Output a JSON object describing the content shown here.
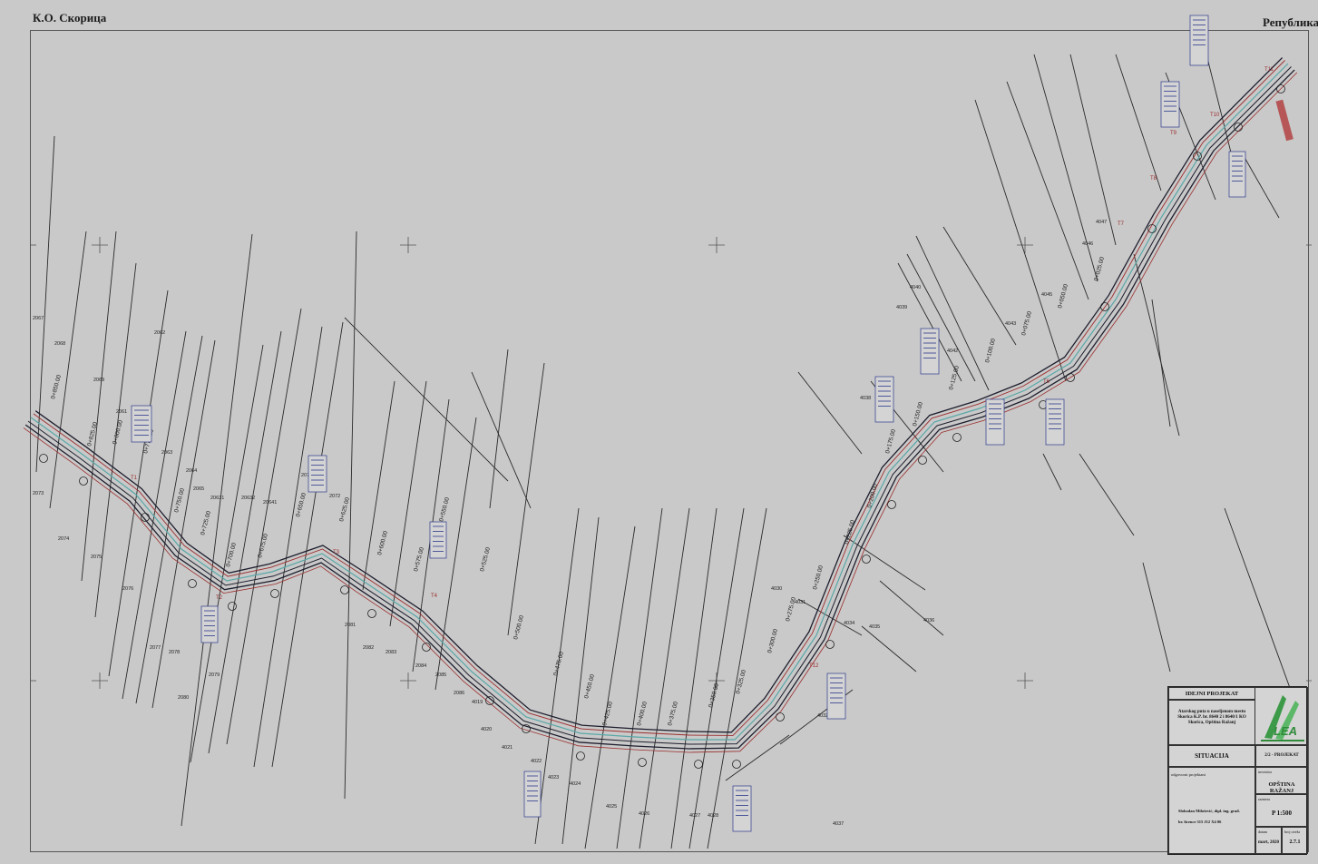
{
  "header": {
    "left_title": "К.О. Скорица",
    "right_title": "Република",
    "center_title": ""
  },
  "stations": [
    "0+850.00",
    "0+825.00",
    "0+800.00",
    "0+775.00",
    "0+750.00",
    "0+725.00",
    "0+700.00",
    "0+675.00",
    "0+650.00",
    "0+625.00",
    "0+600.00",
    "0+575.00",
    "0+550.00",
    "0+525.00",
    "0+500.00",
    "0+475.00",
    "0+450.00",
    "0+425.00",
    "0+400.00",
    "0+375.00",
    "0+350.00",
    "0+325.00",
    "0+300.00",
    "0+275.00",
    "0+250.00",
    "0+225.00",
    "0+200.00",
    "0+175.00",
    "0+150.00",
    "0+125.00",
    "0+100.00",
    "0+075.00",
    "0+050.00",
    "0+025.00"
  ],
  "parcels": [
    "2067",
    "2068",
    "2069",
    "2061",
    "2062",
    "2063",
    "2064",
    "2065",
    "20631",
    "20632",
    "20641",
    "2071",
    "2072",
    "2073",
    "2074",
    "2075",
    "2076",
    "2077",
    "2078",
    "2079",
    "2080",
    "2081",
    "2082",
    "2083",
    "2084",
    "2085",
    "2086",
    "4019",
    "4020",
    "4021",
    "4022",
    "4023",
    "4024",
    "4025",
    "4026",
    "4027",
    "4028",
    "4030",
    "4031",
    "4032",
    "4034",
    "4035",
    "4036",
    "4037",
    "4038",
    "4039",
    "4040",
    "4042",
    "4043",
    "4045",
    "4046",
    "4047"
  ],
  "points": [
    "T1",
    "T2",
    "T3",
    "T4",
    "T5",
    "T6",
    "T7",
    "T8",
    "T9",
    "T10",
    "T11",
    "T12"
  ],
  "colors": {
    "background": "#c9c9c9",
    "road_edge": "#1e1e2e",
    "road_center": "#5aa7a7",
    "road_red": "#9b2c2c",
    "label_blue": "#2d3a8c",
    "parcel_line": "#2a2a2a",
    "accent": "#2f8a3a"
  },
  "title_block": {
    "heading": "IDEJNI PROJEKAT",
    "description": "Atarskog puta u naseljenom mestu Skorica K.P. br. 8640 2 i 8640/1 KO Skorica, Opština Ražanj",
    "sheet_name": "SITUACIJA",
    "project_type": "2/2 - PROJEKAT SAOBRAĆAJNICA",
    "investor_label": "investitor",
    "investor": "OPŠTINA RAŽANJ",
    "responsible_label": "odgovorni projektant",
    "engineer": "Slobodan Milošević, dipl. ing. građ.",
    "license": "br. licence 315 J12 X4 06",
    "scale_label": "razmera",
    "scale": "P 1:500",
    "date_label": "datum",
    "date": "mart, 2020",
    "sheet_no_label": "broj crteža",
    "sheet_no": "2.7.1",
    "logo_text": "LEA"
  }
}
